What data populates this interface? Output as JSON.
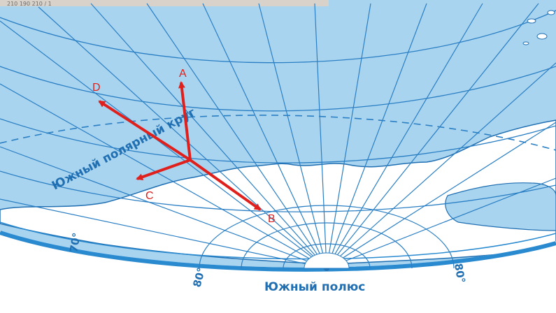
{
  "map": {
    "colors": {
      "ocean": "#a9d4ef",
      "grid": "#2a7fc4",
      "coast": "#1f6fb2",
      "land": "#ffffff",
      "arrow": "#e0201c",
      "label": "#1f6fb2",
      "header_strip": "#d8d2cb"
    },
    "labels": {
      "circle": "Южный полярный круг",
      "pole": "Южный полюс",
      "lat_70": "70°",
      "lat_80_left": "80°",
      "lat_80_right": "80°"
    },
    "header_strip_text": "210       190        210        / 1",
    "points": {
      "A": "A",
      "B": "B",
      "C": "C",
      "D": "D"
    }
  }
}
